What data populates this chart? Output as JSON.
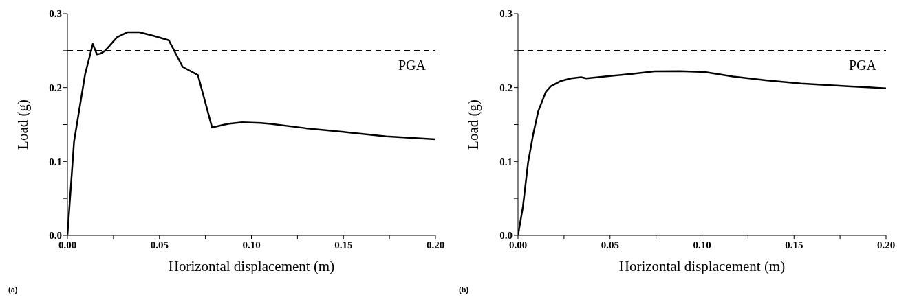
{
  "chart_data": [
    {
      "type": "line",
      "xlabel": "Horizontal displacement (m)",
      "ylabel": "Load (g)",
      "annotations": [
        "(a)"
      ],
      "color": "#000000",
      "line_style": "solid",
      "marker": "none",
      "grid": false,
      "legend": false,
      "x": [
        0,
        0.0036,
        0.0096,
        0.0138,
        0.016,
        0.018,
        0.0205,
        0.0269,
        0.0327,
        0.0391,
        0.0468,
        0.0551,
        0.0626,
        0.0709,
        0.0786,
        0.0872,
        0.0949,
        0.105,
        0.1104,
        0.1296,
        0.15,
        0.1732,
        0.2
      ],
      "values": [
        0,
        0.127,
        0.218,
        0.259,
        0.245,
        0.246,
        0.25,
        0.268,
        0.275,
        0.275,
        0.27,
        0.264,
        0.228,
        0.217,
        0.146,
        0.151,
        0.153,
        0.152,
        0.151,
        0.145,
        0.14,
        0.134,
        0.13
      ],
      "xlim": [
        0,
        0.2
      ],
      "ylim": [
        0,
        0.3
      ],
      "xticks": [
        {
          "value": 0,
          "label": "0.00"
        },
        {
          "value": 0.025,
          "label": null
        },
        {
          "value": 0.05,
          "label": "0.05"
        },
        {
          "value": 0.075,
          "label": null
        },
        {
          "value": 0.1,
          "label": "0.10"
        },
        {
          "value": 0.125,
          "label": null
        },
        {
          "value": 0.15,
          "label": "0.15"
        },
        {
          "value": 0.175,
          "label": null
        },
        {
          "value": 0.2,
          "label": "0.20"
        }
      ],
      "yticks": [
        {
          "value": 0,
          "label": "0.0"
        },
        {
          "value": 0.05,
          "label": null
        },
        {
          "value": 0.1,
          "label": "0.1"
        },
        {
          "value": 0.15,
          "label": null
        },
        {
          "value": 0.2,
          "label": "0.2"
        },
        {
          "value": 0.25,
          "label": null
        },
        {
          "value": 0.3,
          "label": "0.3"
        }
      ],
      "ref_lines": [
        {
          "axis": "y",
          "value": 0.25,
          "label": "PGA",
          "color": "#000000",
          "line_style": "dashed"
        }
      ]
    },
    {
      "type": "line",
      "xlabel": "Horizontal displacement (m)",
      "ylabel": "Load (g)",
      "annotations": [
        "(b)"
      ],
      "color": "#000000",
      "line_style": "solid",
      "marker": "none",
      "grid": false,
      "legend": false,
      "x": [
        0,
        0.0027,
        0.0055,
        0.0082,
        0.011,
        0.0151,
        0.0179,
        0.0234,
        0.0288,
        0.0343,
        0.0371,
        0.05,
        0.0618,
        0.0742,
        0.088,
        0.1016,
        0.1168,
        0.1346,
        0.1538,
        0.181,
        0.2
      ],
      "values": [
        0,
        0.039,
        0.099,
        0.136,
        0.168,
        0.194,
        0.202,
        0.209,
        0.2125,
        0.214,
        0.2125,
        0.2157,
        0.2185,
        0.222,
        0.2223,
        0.221,
        0.215,
        0.21,
        0.2055,
        0.2016,
        0.199
      ],
      "xlim": [
        0,
        0.2
      ],
      "ylim": [
        0,
        0.3
      ],
      "xticks": [
        {
          "value": 0,
          "label": "0.00"
        },
        {
          "value": 0.025,
          "label": null
        },
        {
          "value": 0.05,
          "label": "0.05"
        },
        {
          "value": 0.075,
          "label": null
        },
        {
          "value": 0.1,
          "label": "0.10"
        },
        {
          "value": 0.125,
          "label": null
        },
        {
          "value": 0.15,
          "label": "0.15"
        },
        {
          "value": 0.175,
          "label": null
        },
        {
          "value": 0.2,
          "label": "0.20"
        }
      ],
      "yticks": [
        {
          "value": 0,
          "label": "0.0"
        },
        {
          "value": 0.05,
          "label": null
        },
        {
          "value": 0.1,
          "label": "0.1"
        },
        {
          "value": 0.15,
          "label": null
        },
        {
          "value": 0.2,
          "label": "0.2"
        },
        {
          "value": 0.25,
          "label": null
        },
        {
          "value": 0.3,
          "label": "0.3"
        }
      ],
      "ref_lines": [
        {
          "axis": "y",
          "value": 0.25,
          "label": "PGA",
          "color": "#000000",
          "line_style": "dashed"
        }
      ]
    }
  ]
}
